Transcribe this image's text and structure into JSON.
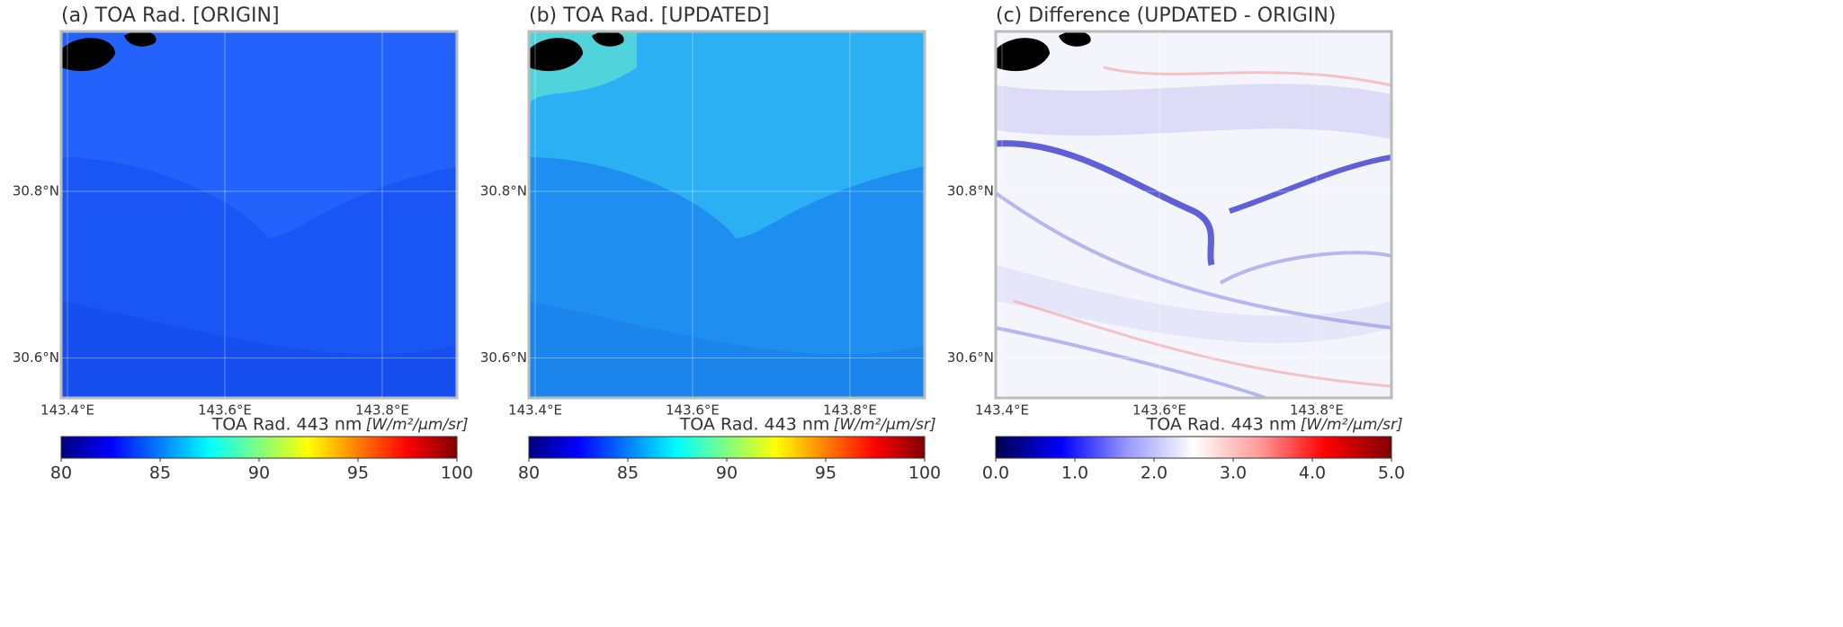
{
  "chart_data": [
    {
      "type": "map",
      "title": "(a) TOA Rad. [ORIGIN]",
      "xlim": [
        143.392,
        143.895
      ],
      "ylim": [
        30.552,
        30.992
      ],
      "xticks": [
        {
          "value": 143.4,
          "label": "143.4°E"
        },
        {
          "value": 143.6,
          "label": "143.6°E"
        },
        {
          "value": 143.8,
          "label": "143.8°E"
        }
      ],
      "yticks": [
        {
          "value": 30.6,
          "label": "30.6°N"
        },
        {
          "value": 30.8,
          "label": "30.8°N"
        }
      ],
      "grid": true,
      "colorbar": {
        "label": "TOA Rad. 443 nm",
        "unit": "[W/m²/μm/sr]",
        "lim": [
          80,
          100
        ],
        "ticks": [
          80,
          85,
          90,
          95,
          100
        ],
        "colors": [
          "#00007f",
          "#0000ff",
          "#007fff",
          "#00ffff",
          "#7fff7f",
          "#ffff00",
          "#ff7f00",
          "#ff0000",
          "#7f0000"
        ]
      }
    },
    {
      "type": "map",
      "title": "(b) TOA Rad. [UPDATED]",
      "xlim": [
        143.392,
        143.895
      ],
      "ylim": [
        30.552,
        30.992
      ],
      "xticks": [
        {
          "value": 143.4,
          "label": "143.4°E"
        },
        {
          "value": 143.6,
          "label": "143.6°E"
        },
        {
          "value": 143.8,
          "label": "143.8°E"
        }
      ],
      "yticks": [
        {
          "value": 30.6,
          "label": "30.6°N"
        },
        {
          "value": 30.8,
          "label": "30.8°N"
        }
      ],
      "grid": true,
      "colorbar": {
        "label": "TOA Rad. 443 nm",
        "unit": "[W/m²/μm/sr]",
        "lim": [
          80,
          100
        ],
        "ticks": [
          80,
          85,
          90,
          95,
          100
        ],
        "colors": [
          "#00007f",
          "#0000ff",
          "#007fff",
          "#00ffff",
          "#7fff7f",
          "#ffff00",
          "#ff7f00",
          "#ff0000",
          "#7f0000"
        ]
      }
    },
    {
      "type": "map",
      "title": "(c) Difference (UPDATED - ORIGIN)",
      "xlim": [
        143.392,
        143.895
      ],
      "ylim": [
        30.552,
        30.992
      ],
      "xticks": [
        {
          "value": 143.4,
          "label": "143.4°E"
        },
        {
          "value": 143.6,
          "label": "143.6°E"
        },
        {
          "value": 143.8,
          "label": "143.8°E"
        }
      ],
      "yticks": [
        {
          "value": 30.6,
          "label": "30.6°N"
        },
        {
          "value": 30.8,
          "label": "30.8°N"
        }
      ],
      "grid": true,
      "colorbar": {
        "label": "TOA Rad. 443 nm",
        "unit": "[W/m²/μm/sr]",
        "lim": [
          0,
          5
        ],
        "ticks": [
          {
            "value": 0,
            "label": "0.0"
          },
          {
            "value": 1,
            "label": "1.0"
          },
          {
            "value": 2,
            "label": "2.0"
          },
          {
            "value": 3,
            "label": "3.0"
          },
          {
            "value": 4,
            "label": "4.0"
          },
          {
            "value": 5,
            "label": "5.0"
          }
        ],
        "colors": [
          "#00004c",
          "#0000ff",
          "#9999ff",
          "#ffffff",
          "#ff9999",
          "#ff0000",
          "#7f0000"
        ]
      }
    }
  ]
}
